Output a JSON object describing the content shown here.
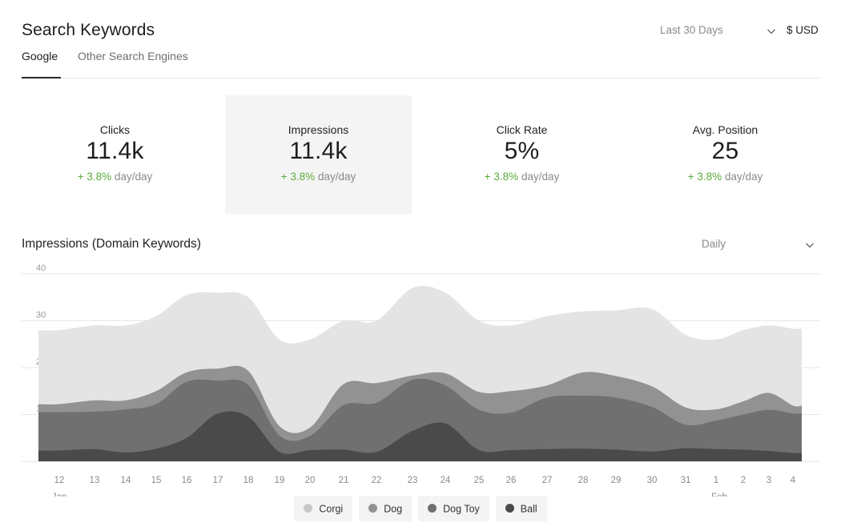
{
  "header": {
    "title": "Search Keywords",
    "range_label": "Last 30 Days",
    "currency_label": "$ USD",
    "chevron_icon": "chevron-down-icon"
  },
  "tabs": [
    {
      "label": "Google",
      "active": true
    },
    {
      "label": "Other Search Engines",
      "active": false
    }
  ],
  "kpis": [
    {
      "label": "Clicks",
      "value": "11.4k",
      "delta_sign": "+ ",
      "delta": "3.8%",
      "delta_suffix": " day/day",
      "selected": false
    },
    {
      "label": "Impressions",
      "value": "11.4k",
      "delta_sign": "+ ",
      "delta": "3.8%",
      "delta_suffix": " day/day",
      "selected": true
    },
    {
      "label": "Click Rate",
      "value": "5%",
      "delta_sign": "+ ",
      "delta": "3.8%",
      "delta_suffix": " day/day",
      "selected": false
    },
    {
      "label": "Avg. Position",
      "value": "25",
      "delta_sign": "+ ",
      "delta": "3.8%",
      "delta_suffix": " day/day",
      "selected": false
    }
  ],
  "chart_section": {
    "title": "Impressions (Domain Keywords)",
    "interval_label": "Daily"
  },
  "colors": {
    "positive": "#5bab3c",
    "gridline": "#e6e6e6"
  },
  "chart_data": {
    "type": "area",
    "stacked": true,
    "smooth": true,
    "x": [
      "12",
      "13",
      "14",
      "15",
      "16",
      "17",
      "18",
      "19",
      "20",
      "21",
      "22",
      "23",
      "24",
      "25",
      "26",
      "27",
      "28",
      "29",
      "30",
      "31",
      "1",
      "2",
      "3",
      "4"
    ],
    "month_labels": [
      {
        "label": "Jan",
        "at": "12"
      },
      {
        "label": "Feb",
        "at": "1"
      }
    ],
    "yticks": [
      40,
      30,
      20,
      10
    ],
    "ylim": [
      0,
      40
    ],
    "grid": true,
    "legend_position": "bottom-center",
    "series": [
      {
        "name": "Ball",
        "color": "#4a4a4a",
        "values": [
          2.3,
          2.6,
          1.9,
          2.7,
          5.0,
          10.2,
          9.5,
          2.0,
          2.4,
          2.5,
          2.0,
          6.5,
          8.1,
          2.4,
          2.4,
          2.6,
          2.7,
          2.5,
          2.1,
          2.8,
          2.6,
          2.5,
          2.2,
          1.8
        ]
      },
      {
        "name": "Dog Toy",
        "color": "#707070",
        "values": [
          8.2,
          8.0,
          9.2,
          9.5,
          12.0,
          7.0,
          6.8,
          3.5,
          3.0,
          9.5,
          10.5,
          10.9,
          8.1,
          8.6,
          8.0,
          11.0,
          11.3,
          11.1,
          9.5,
          5.0,
          6.1,
          7.5,
          8.8,
          8.4
        ]
      },
      {
        "name": "Dog",
        "color": "#929292",
        "values": [
          1.7,
          2.4,
          1.9,
          2.8,
          2.0,
          2.6,
          3.0,
          2.0,
          1.8,
          4.5,
          4.2,
          0.9,
          2.6,
          3.8,
          4.6,
          2.6,
          5.0,
          4.6,
          4.4,
          3.7,
          2.4,
          2.8,
          3.6,
          1.7
        ]
      },
      {
        "name": "Corgi",
        "color": "#e4e4e4",
        "values": [
          15.8,
          16.0,
          16.0,
          16.0,
          16.5,
          16.2,
          15.7,
          18.5,
          18.8,
          13.5,
          13.3,
          18.7,
          17.2,
          15.2,
          14.0,
          14.8,
          13.0,
          14.0,
          16.5,
          15.5,
          14.9,
          15.2,
          14.4,
          16.4
        ]
      }
    ]
  }
}
